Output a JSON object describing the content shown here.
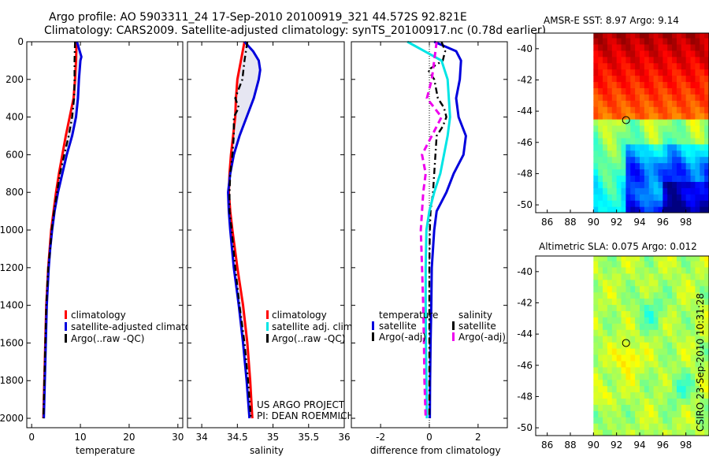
{
  "header": {
    "title_line1": "Argo profile: AO 5903311_24 17-Sep-2010 20100919_321 44.572S 92.821E",
    "title_line2": "Climatology: CARS2009. Satellite-adjusted climatology: synTS_20100917.nc (0.78d earlier)"
  },
  "side_label": "CSIRO 23-Sep-2010 10:31:28",
  "colors": {
    "clim": "#ff0000",
    "sat": "#0000dd",
    "argo": "#000000",
    "sal_sat": "#00e5e5",
    "sal_argo": "#ee00ee",
    "fill": "#e6e6f2"
  },
  "chart_data": [
    {
      "id": "temperature",
      "type": "line",
      "xlabel": "temperature",
      "xlim": [
        -1,
        31
      ],
      "ylim": [
        0,
        2050
      ],
      "xticks": [
        "0",
        "10",
        "20",
        "30"
      ],
      "xtick_values": [
        0,
        10,
        20,
        30
      ],
      "yticks": [
        "0",
        "200",
        "400",
        "600",
        "800",
        "1000",
        "1200",
        "1400",
        "1600",
        "1800",
        "2000"
      ],
      "ytick_values": [
        0,
        200,
        400,
        600,
        800,
        1000,
        1200,
        1400,
        1600,
        1800,
        2000
      ],
      "series": [
        {
          "name": "climatology",
          "style": "clim",
          "depth": [
            0,
            100,
            200,
            300,
            400,
            500,
            600,
            700,
            800,
            900,
            1000,
            1100,
            1200,
            1400,
            1600,
            1800,
            2000
          ],
          "values": [
            9.2,
            9.1,
            8.9,
            8.6,
            7.8,
            7.0,
            6.3,
            5.6,
            5.0,
            4.5,
            4.0,
            3.7,
            3.4,
            3.0,
            2.8,
            2.6,
            2.4
          ]
        },
        {
          "name": "satellite-adjusted climatology",
          "style": "sat",
          "depth": [
            0,
            80,
            100,
            200,
            300,
            400,
            500,
            600,
            700,
            800,
            900,
            1000,
            1100,
            1200,
            1400,
            1600,
            1800,
            2000
          ],
          "values": [
            9.3,
            10.2,
            10.0,
            9.7,
            9.5,
            9.1,
            8.3,
            7.2,
            6.3,
            5.4,
            4.7,
            4.2,
            3.8,
            3.5,
            3.1,
            2.9,
            2.7,
            2.5
          ]
        },
        {
          "name": "Argo(..raw -QC)",
          "style": "argo",
          "depth": [
            0,
            100,
            200,
            300,
            400,
            500,
            600,
            700,
            800,
            900,
            1000,
            1100,
            1200,
            1400,
            1600,
            1800,
            2000
          ],
          "values": [
            8.9,
            8.8,
            8.8,
            8.7,
            8.3,
            7.6,
            6.7,
            5.8,
            5.2,
            4.6,
            4.1,
            3.8,
            3.4,
            3.0,
            2.8,
            2.6,
            2.4
          ]
        }
      ],
      "legend": [
        "climatology",
        "satellite-adjusted climatology",
        "Argo(..raw -QC)"
      ]
    },
    {
      "id": "salinity",
      "type": "line",
      "xlabel": "salinity",
      "xlim": [
        33.8,
        36.0
      ],
      "ylim": [
        0,
        2050
      ],
      "xticks": [
        "34",
        "34.5",
        "35",
        "35.5",
        "36"
      ],
      "xtick_values": [
        34,
        34.5,
        35,
        35.5,
        36
      ],
      "series": [
        {
          "name": "climatology",
          "style": "clim",
          "depth": [
            0,
            100,
            200,
            300,
            400,
            500,
            600,
            700,
            800,
            900,
            1000,
            1200,
            1400,
            1600,
            1800,
            2000
          ],
          "values": [
            34.6,
            34.55,
            34.5,
            34.48,
            34.47,
            34.44,
            34.41,
            34.39,
            34.38,
            34.4,
            34.43,
            34.5,
            34.58,
            34.64,
            34.68,
            34.71
          ]
        },
        {
          "name": "satellite adj. clim.",
          "style": "sat",
          "depth": [
            0,
            50,
            100,
            150,
            200,
            300,
            400,
            500,
            600,
            700,
            800,
            900,
            1000,
            1200,
            1400,
            1600,
            1800,
            2000
          ],
          "values": [
            34.6,
            34.72,
            34.8,
            34.82,
            34.8,
            34.73,
            34.63,
            34.53,
            34.45,
            34.4,
            34.37,
            34.38,
            34.4,
            34.45,
            34.52,
            34.58,
            34.63,
            34.67
          ]
        },
        {
          "name": "Argo(..raw -QC)",
          "style": "argo",
          "depth": [
            0,
            100,
            200,
            300,
            350,
            400,
            500,
            600,
            700,
            800,
            900,
            1000,
            1200,
            1400,
            1600,
            1800,
            2000
          ],
          "values": [
            34.64,
            34.6,
            34.57,
            34.47,
            34.52,
            34.45,
            34.45,
            34.43,
            34.4,
            34.39,
            34.39,
            34.42,
            34.47,
            34.53,
            34.6,
            34.65,
            34.69
          ]
        }
      ],
      "legend": [
        "climatology",
        "satellite adj. clim.",
        "Argo(..raw -QC)"
      ],
      "annotation": [
        "US ARGO PROJECT",
        "PI: DEAN ROEMMICH"
      ]
    },
    {
      "id": "difference",
      "type": "line",
      "xlabel": "difference from climatology",
      "xlim": [
        -3.2,
        3.2
      ],
      "ylim": [
        0,
        2050
      ],
      "xticks": [
        "-2",
        "0",
        "2"
      ],
      "xtick_values": [
        -2,
        0,
        2
      ],
      "series": [
        {
          "name": "temperature satellite",
          "style": "sat",
          "depth": [
            0,
            50,
            100,
            200,
            300,
            400,
            500,
            600,
            700,
            800,
            850,
            900,
            1000,
            1200,
            1400,
            1600,
            1800,
            2000
          ],
          "values": [
            0.2,
            1.1,
            1.3,
            1.25,
            1.1,
            1.2,
            1.5,
            1.4,
            1.0,
            0.7,
            0.5,
            0.3,
            0.2,
            0.1,
            0.08,
            0.05,
            0.03,
            0.02
          ]
        },
        {
          "name": "temperature Argo(-adj)",
          "style": "argo",
          "depth": [
            0,
            50,
            100,
            150,
            200,
            300,
            350,
            400,
            450,
            500,
            600,
            700,
            800,
            900,
            1000,
            1200,
            1400,
            1600,
            1800,
            2000
          ],
          "values": [
            0.5,
            0.65,
            0.55,
            -0.05,
            0.2,
            0.35,
            0.6,
            0.7,
            0.55,
            0.3,
            0.25,
            0.2,
            0.15,
            0.05,
            0.02,
            0.0,
            0.0,
            0.0,
            0.0,
            0.0
          ]
        },
        {
          "name": "salinity satellite",
          "style": "sal_sat",
          "depth": [
            0,
            50,
            100,
            200,
            300,
            400,
            500,
            600,
            700,
            800,
            900,
            1000,
            1200,
            1400,
            1600,
            1800,
            2000
          ],
          "values": [
            -0.9,
            -0.2,
            0.5,
            0.75,
            0.8,
            0.85,
            0.75,
            0.6,
            0.45,
            0.2,
            0.0,
            -0.12,
            -0.15,
            -0.15,
            -0.14,
            -0.12,
            -0.1
          ]
        },
        {
          "name": "salinity Argo(-adj)",
          "style": "sal_argo",
          "depth": [
            0,
            100,
            200,
            300,
            400,
            500,
            600,
            700,
            800,
            900,
            1000,
            1200,
            1400,
            1600,
            1800,
            2000
          ],
          "values": [
            0.3,
            0.2,
            0.1,
            -0.1,
            0.5,
            0.1,
            -0.3,
            -0.15,
            -0.25,
            -0.3,
            -0.35,
            -0.3,
            -0.25,
            -0.22,
            -0.2,
            -0.15
          ]
        }
      ],
      "legend_groups": [
        {
          "heading": "temperature",
          "items": [
            "satellite",
            "Argo(-adj)"
          ]
        },
        {
          "heading": "salinity",
          "items": [
            "satellite",
            "Argo(-adj)"
          ]
        }
      ]
    },
    {
      "id": "sst_map",
      "type": "heatmap",
      "title": "AMSR-E SST: 8.97 Argo: 9.14",
      "xlim": [
        85,
        100
      ],
      "ylim": [
        -50.5,
        -39
      ],
      "xticks": [
        "86",
        "88",
        "90",
        "92",
        "94",
        "96",
        "98"
      ],
      "xtick_values": [
        86,
        88,
        90,
        92,
        94,
        96,
        98
      ],
      "yticks": [
        "-40",
        "-42",
        "-44",
        "-46",
        "-48",
        "-50"
      ],
      "ytick_values": [
        -40,
        -42,
        -44,
        -46,
        -48,
        -50
      ],
      "data_lon_min": 90,
      "argo_point": {
        "lon": 92.821,
        "lat": -44.572
      }
    },
    {
      "id": "sla_map",
      "type": "heatmap",
      "title": "Altimetric SLA: 0.075 Argo: 0.012",
      "xlim": [
        85,
        100
      ],
      "ylim": [
        -50.5,
        -39
      ],
      "xticks": [
        "86",
        "88",
        "90",
        "92",
        "94",
        "96",
        "98"
      ],
      "xtick_values": [
        86,
        88,
        90,
        92,
        94,
        96,
        98
      ],
      "yticks": [
        "-40",
        "-42",
        "-44",
        "-46",
        "-48",
        "-50"
      ],
      "ytick_values": [
        -40,
        -42,
        -44,
        -46,
        -48,
        -50
      ],
      "data_lon_min": 90,
      "argo_point": {
        "lon": 92.821,
        "lat": -44.572
      }
    }
  ]
}
